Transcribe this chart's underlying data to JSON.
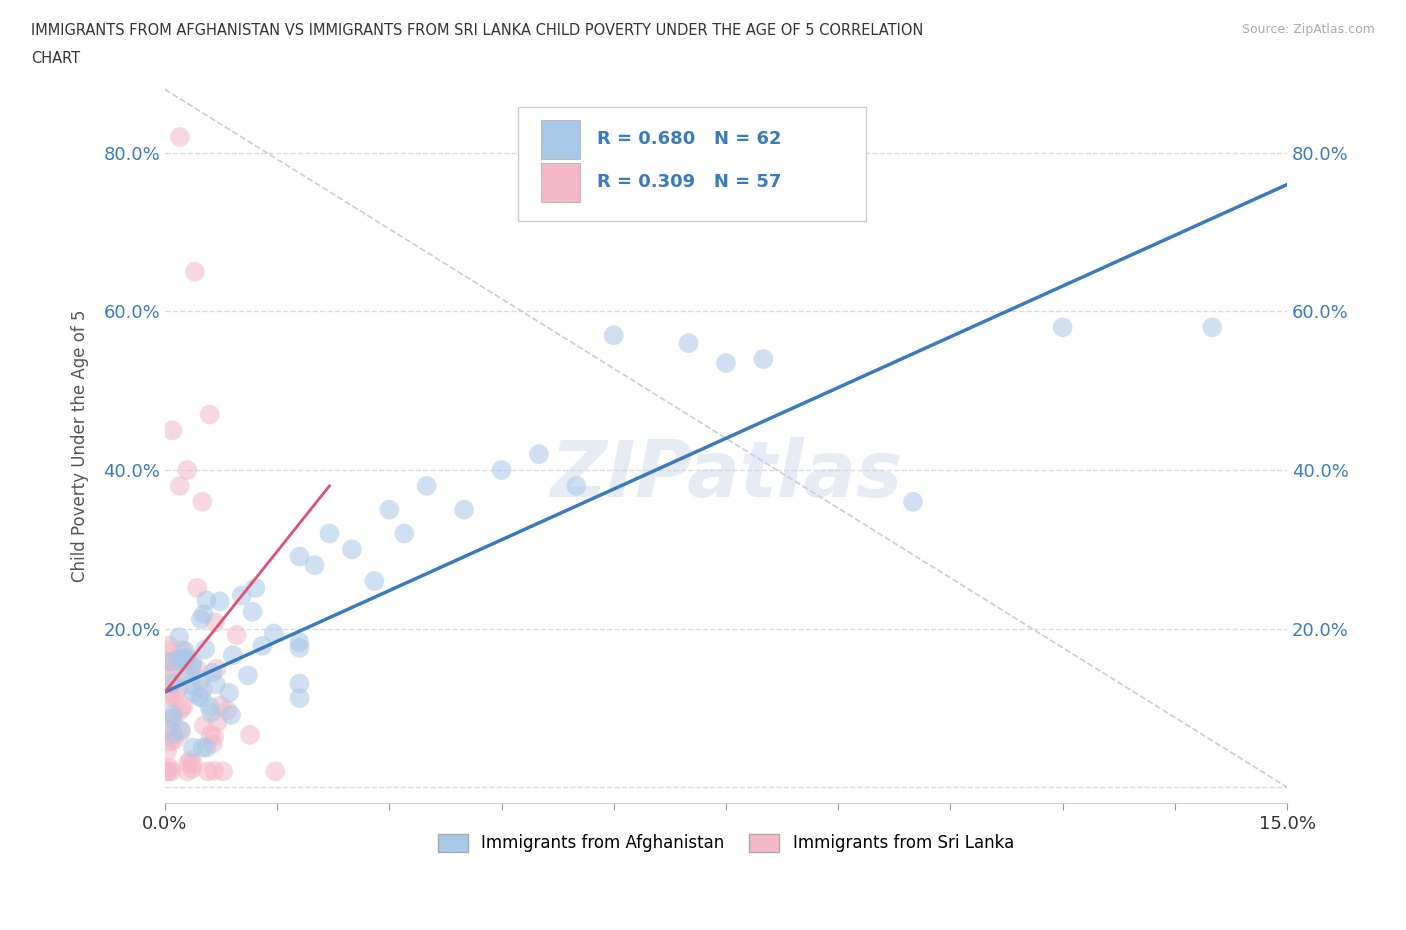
{
  "title_line1": "IMMIGRANTS FROM AFGHANISTAN VS IMMIGRANTS FROM SRI LANKA CHILD POVERTY UNDER THE AGE OF 5 CORRELATION",
  "title_line2": "CHART",
  "source": "Source: ZipAtlas.com",
  "ylabel": "Child Poverty Under the Age of 5",
  "xmin": 0.0,
  "xmax": 0.15,
  "ymin": -0.02,
  "ymax": 0.88,
  "grid_color": "#d8dce8",
  "background_color": "#ffffff",
  "watermark": "ZIPatlas",
  "legend_R1": "R = 0.680",
  "legend_N1": "N = 62",
  "legend_R2": "R = 0.309",
  "legend_N2": "N = 57",
  "color_afghanistan": "#a8c8e8",
  "color_srilanka": "#f4b8c8",
  "line_color_afghanistan": "#3a7bbf",
  "line_color_srilanka": "#e05070",
  "tick_color_right": "#3a7bbf",
  "label_afghanistan": "Immigrants from Afghanistan",
  "label_srilanka": "Immigrants from Sri Lanka",
  "af_line_x0": 0.0,
  "af_line_y0": 0.12,
  "af_line_x1": 0.15,
  "af_line_y1": 0.76,
  "sl_line_x0": 0.0,
  "sl_line_y0": 0.12,
  "sl_line_x1": 0.022,
  "sl_line_y1": 0.38,
  "ref_line_x0": 0.0,
  "ref_line_y0": 0.88,
  "ref_line_x1": 0.15,
  "ref_line_y1": 0.0
}
